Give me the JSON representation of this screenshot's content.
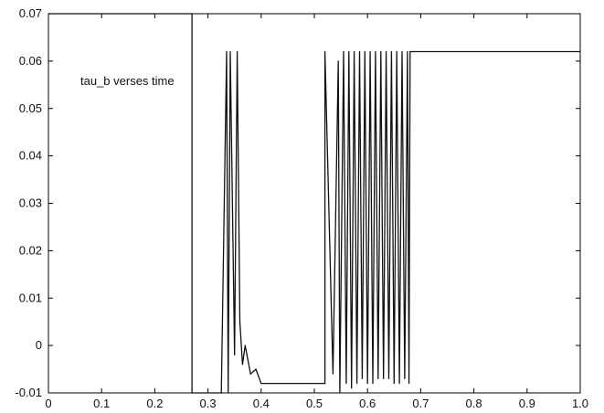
{
  "chart_data": {
    "type": "line",
    "title": "",
    "xlabel": "",
    "ylabel": "",
    "xlim": [
      0,
      1.0
    ],
    "ylim": [
      -0.01,
      0.07
    ],
    "grid": false,
    "legend": "none",
    "x_ticks": [
      "0",
      "0.1",
      "0.2",
      "0.3",
      "0.4",
      "0.5",
      "0.6",
      "0.7",
      "0.8",
      "0.9",
      "1.0"
    ],
    "y_ticks": [
      "-0.01",
      "0",
      "0.01",
      "0.02",
      "0.03",
      "0.04",
      "0.05",
      "0.06",
      "0.07"
    ],
    "annotation": "tau_b verses time",
    "line_color": "#111111",
    "background_color": "#ffffff",
    "series": [
      {
        "x": [
          0,
          0.003,
          0.003,
          0.27,
          0.27,
          0.325,
          0.325,
          0.335,
          0.338,
          0.342,
          0.35,
          0.355,
          0.36,
          0.365,
          0.37,
          0.38,
          0.39,
          0.4,
          0.42,
          0.45,
          0.48,
          0.5,
          0.52,
          0.52,
          0.535,
          0.545,
          0.548,
          0.555,
          0.56,
          0.565,
          0.57,
          0.575,
          0.58,
          0.585,
          0.59,
          0.595,
          0.6,
          0.605,
          0.61,
          0.615,
          0.62,
          0.625,
          0.63,
          0.635,
          0.64,
          0.645,
          0.65,
          0.655,
          0.66,
          0.665,
          0.67,
          0.675,
          0.678,
          0.68,
          1.0
        ],
        "y": [
          0.07,
          0.07,
          0.07,
          0.07,
          -0.01,
          -0.01,
          -0.01,
          0.062,
          -0.01,
          0.062,
          -0.002,
          0.062,
          0.005,
          -0.004,
          0.0,
          -0.006,
          -0.005,
          -0.008,
          -0.008,
          -0.008,
          -0.008,
          -0.008,
          -0.008,
          0.062,
          -0.006,
          0.06,
          -0.01,
          0.062,
          -0.008,
          0.062,
          -0.009,
          0.062,
          -0.008,
          0.062,
          -0.007,
          0.062,
          -0.008,
          0.062,
          -0.008,
          0.062,
          -0.007,
          0.062,
          -0.007,
          0.062,
          -0.007,
          0.062,
          -0.008,
          0.062,
          -0.008,
          0.062,
          -0.007,
          0.062,
          -0.008,
          0.062,
          0.062
        ]
      }
    ]
  }
}
